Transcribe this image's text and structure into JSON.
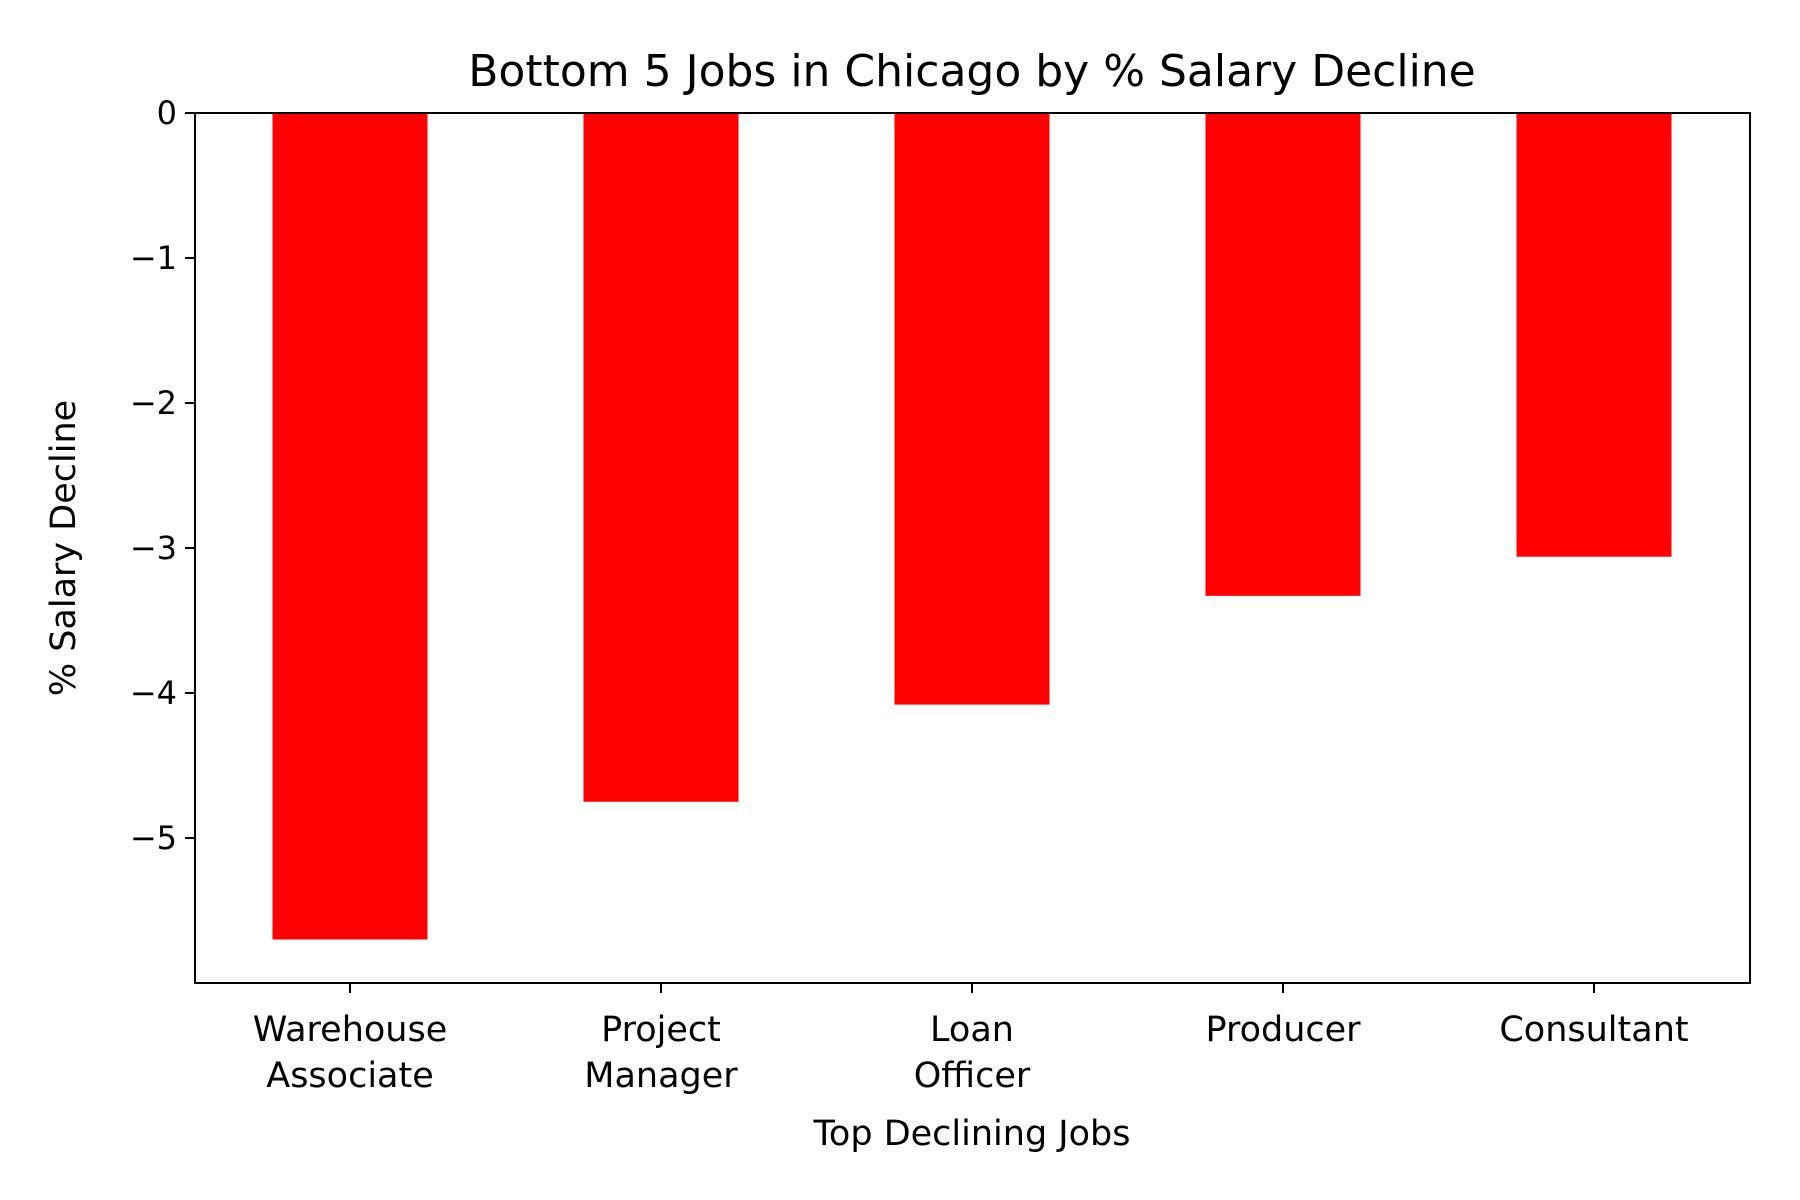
{
  "chart_data": {
    "type": "bar",
    "title": "Bottom 5 Jobs in Chicago by % Salary Decline",
    "xlabel": "Top Declining Jobs",
    "ylabel": "% Salary Decline",
    "categories": [
      [
        "Warehouse",
        "Associate"
      ],
      [
        "Project",
        "Manager"
      ],
      [
        "Loan",
        "Officer"
      ],
      [
        "Producer"
      ],
      [
        "Consultant"
      ]
    ],
    "values": [
      -5.7,
      -4.75,
      -4.08,
      -3.33,
      -3.06
    ],
    "ylim": [
      -6.0,
      0
    ],
    "yticks": [
      0,
      -1,
      -2,
      -3,
      -4,
      -5
    ],
    "ytick_labels": [
      "0",
      "−1",
      "−2",
      "−3",
      "−4",
      "−5"
    ],
    "bar_color": "#ff0000",
    "grid": false,
    "legend": "none"
  }
}
